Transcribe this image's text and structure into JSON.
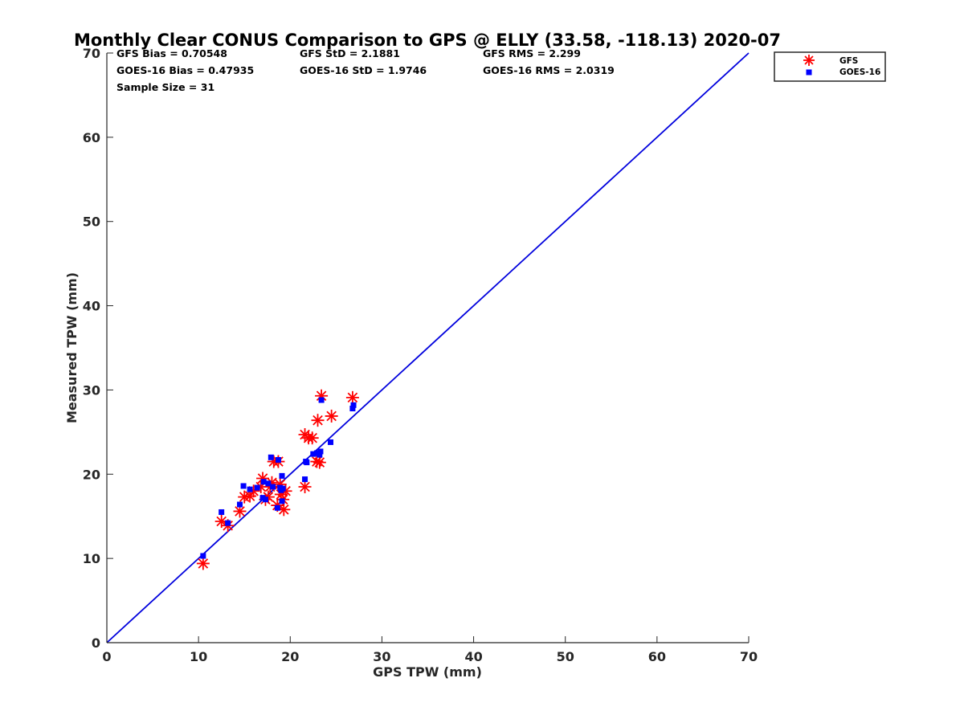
{
  "chart_data": {
    "type": "scatter",
    "title": "Monthly Clear CONUS Comparison to GPS @ ELLY (33.58, -118.13) 2020-07",
    "xlabel": "GPS TPW (mm)",
    "ylabel": "Measured TPW (mm)",
    "xlim": [
      0,
      70
    ],
    "ylim": [
      0,
      70
    ],
    "xticks": [
      0,
      10,
      20,
      30,
      40,
      50,
      60,
      70
    ],
    "yticks": [
      0,
      10,
      20,
      30,
      40,
      50,
      60,
      70
    ],
    "grid": false,
    "legend_placement": "outside-top-right",
    "stats": {
      "gfs_bias": "GFS Bias = 0.70548",
      "goes_bias": "GOES-16 Bias = 0.47935",
      "sample_size": "Sample Size = 31",
      "gfs_std": "GFS StD = 2.1881",
      "goes_std": "GOES-16 StD = 1.9746",
      "gfs_rms": "GFS RMS = 2.299",
      "goes_rms": "GOES-16 RMS = 2.0319"
    },
    "reference_line": {
      "x": [
        0,
        70
      ],
      "y": [
        0,
        70
      ],
      "color": "#0000dd"
    },
    "series": [
      {
        "name": "GFS",
        "marker": "asterisk",
        "color": "#ff0000",
        "points": [
          [
            10.5,
            9.4
          ],
          [
            12.5,
            14.4
          ],
          [
            13.2,
            13.9
          ],
          [
            14.5,
            15.6
          ],
          [
            15.0,
            17.3
          ],
          [
            15.6,
            17.4
          ],
          [
            16.8,
            18.5
          ],
          [
            17.0,
            19.5
          ],
          [
            17.3,
            17.0
          ],
          [
            17.6,
            17.3
          ],
          [
            17.8,
            18.5
          ],
          [
            18.2,
            21.5
          ],
          [
            18.7,
            21.5
          ],
          [
            18.6,
            16.3
          ],
          [
            18.9,
            18.8
          ],
          [
            19.0,
            17.6
          ],
          [
            19.2,
            17.0
          ],
          [
            19.3,
            15.8
          ],
          [
            21.6,
            18.5
          ],
          [
            21.6,
            24.7
          ],
          [
            22.0,
            24.3
          ],
          [
            22.4,
            24.3
          ],
          [
            22.9,
            21.5
          ],
          [
            23.0,
            26.4
          ],
          [
            23.2,
            21.4
          ],
          [
            23.4,
            29.3
          ],
          [
            24.5,
            26.9
          ],
          [
            26.8,
            29.1
          ],
          [
            18.0,
            19.0
          ],
          [
            19.5,
            18.0
          ],
          [
            16.0,
            18.0
          ]
        ]
      },
      {
        "name": "GOES-16",
        "marker": "square",
        "color": "#0000ff",
        "points": [
          [
            10.5,
            10.3
          ],
          [
            12.5,
            15.5
          ],
          [
            13.2,
            14.2
          ],
          [
            14.5,
            16.4
          ],
          [
            14.9,
            18.6
          ],
          [
            15.6,
            18.2
          ],
          [
            16.4,
            18.4
          ],
          [
            17.1,
            19.1
          ],
          [
            17.3,
            17.0
          ],
          [
            17.6,
            18.9
          ],
          [
            17.9,
            22.0
          ],
          [
            18.1,
            18.5
          ],
          [
            18.7,
            21.7
          ],
          [
            18.6,
            16.0
          ],
          [
            18.9,
            18.4
          ],
          [
            19.1,
            19.8
          ],
          [
            19.2,
            18.3
          ],
          [
            19.1,
            16.8
          ],
          [
            21.6,
            19.4
          ],
          [
            21.7,
            21.5
          ],
          [
            21.8,
            21.4
          ],
          [
            22.5,
            22.4
          ],
          [
            22.9,
            22.5
          ],
          [
            23.2,
            22.3
          ],
          [
            23.3,
            22.7
          ],
          [
            23.4,
            28.8
          ],
          [
            24.4,
            23.8
          ],
          [
            26.8,
            27.8
          ],
          [
            26.9,
            28.2
          ],
          [
            17.0,
            17.2
          ],
          [
            19.0,
            18.1
          ]
        ]
      }
    ]
  }
}
